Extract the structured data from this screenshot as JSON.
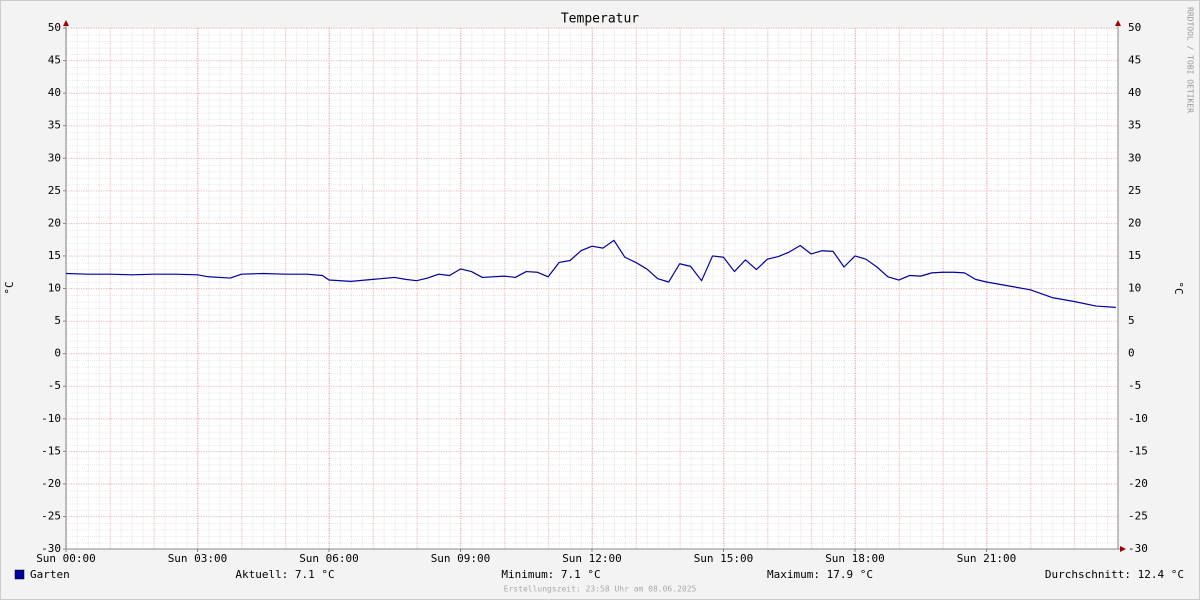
{
  "chart_data": {
    "type": "line",
    "title": "Temperatur",
    "y_label": "°C",
    "y2_label": "°C",
    "watermark": "RRDTOOL / TOBI OETIKER",
    "xlim": [
      0,
      24
    ],
    "xticks": [
      {
        "value": 0,
        "label": "Sun 00:00"
      },
      {
        "value": 3,
        "label": "Sun 03:00"
      },
      {
        "value": 6,
        "label": "Sun 06:00"
      },
      {
        "value": 9,
        "label": "Sun 09:00"
      },
      {
        "value": 12,
        "label": "Sun 12:00"
      },
      {
        "value": 15,
        "label": "Sun 15:00"
      },
      {
        "value": 18,
        "label": "Sun 18:00"
      },
      {
        "value": 21,
        "label": "Sun 21:00"
      }
    ],
    "ylim": [
      -30,
      50
    ],
    "yticks": [
      -30,
      -25,
      -20,
      -15,
      -10,
      -5,
      0,
      5,
      10,
      15,
      20,
      25,
      30,
      35,
      40,
      45,
      50
    ],
    "grid": true,
    "x": [
      0,
      0.5,
      1,
      1.5,
      2,
      2.5,
      3,
      3.25,
      3.5,
      3.75,
      4,
      4.5,
      5,
      5.5,
      5.85,
      6,
      6.5,
      7,
      7.5,
      7.75,
      8,
      8.25,
      8.5,
      8.75,
      9,
      9.25,
      9.5,
      10,
      10.25,
      10.5,
      10.75,
      11,
      11.25,
      11.5,
      11.75,
      12,
      12.25,
      12.5,
      12.75,
      13,
      13.25,
      13.5,
      13.75,
      14,
      14.25,
      14.5,
      14.75,
      15,
      15.25,
      15.5,
      15.75,
      16,
      16.25,
      16.5,
      16.75,
      17,
      17.25,
      17.5,
      17.75,
      18,
      18.25,
      18.5,
      18.75,
      19,
      19.25,
      19.5,
      19.75,
      20,
      20.25,
      20.5,
      20.75,
      21,
      21.5,
      22,
      22.5,
      23,
      23.5,
      23.95
    ],
    "series": [
      {
        "name": "Garten",
        "color": "#0000a0",
        "values": [
          12.3,
          12.2,
          12.2,
          12.1,
          12.2,
          12.2,
          12.1,
          11.8,
          11.7,
          11.6,
          12.2,
          12.3,
          12.2,
          12.2,
          12.0,
          11.3,
          11.1,
          11.4,
          11.7,
          11.4,
          11.2,
          11.6,
          12.2,
          12.0,
          13.0,
          12.6,
          11.7,
          11.9,
          11.7,
          12.6,
          12.5,
          11.8,
          14.0,
          14.3,
          15.8,
          16.5,
          16.2,
          17.4,
          14.8,
          14.0,
          13.0,
          11.5,
          11.0,
          13.8,
          13.4,
          11.2,
          15.0,
          14.8,
          12.6,
          14.4,
          12.9,
          14.5,
          14.9,
          15.6,
          16.6,
          15.3,
          15.8,
          15.7,
          13.3,
          15.0,
          14.5,
          13.3,
          11.8,
          11.3,
          12.0,
          11.9,
          12.4,
          12.5,
          12.5,
          12.4,
          11.4,
          11.0,
          10.4,
          9.8,
          8.6,
          8.0,
          7.3,
          7.1
        ]
      }
    ],
    "stats": {
      "current": "Aktuell: 7.1 °C",
      "minimum": "Minimum: 7.1 °C",
      "maximum": "Maximum: 17.9 °C",
      "average": "Durchschnitt: 12.4 °C"
    },
    "footer": "Erstellungszeit: 23:58 Uhr am 08.06.2025"
  }
}
